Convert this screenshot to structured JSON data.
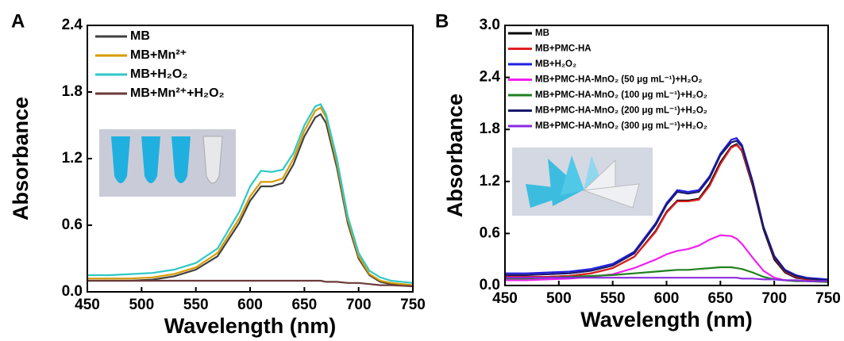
{
  "chart_data": [
    {
      "type": "line",
      "panel_label": "A",
      "x_label": "Wavelength (nm)",
      "y_label": "Absorbance",
      "xlim": [
        450,
        750
      ],
      "xticks": [
        450,
        500,
        550,
        600,
        650,
        700,
        750
      ],
      "ylim": [
        0,
        2.4
      ],
      "yticks": [
        {
          "value": 0,
          "label": "0.0"
        },
        0.6,
        1.2,
        1.8,
        2.4
      ],
      "x": [
        450,
        470,
        490,
        510,
        530,
        550,
        570,
        590,
        600,
        610,
        620,
        630,
        640,
        650,
        660,
        665,
        670,
        680,
        690,
        700,
        710,
        720,
        730,
        750
      ],
      "series": [
        {
          "name": "MB",
          "color": "#404040",
          "values": [
            0.1,
            0.1,
            0.1,
            0.11,
            0.14,
            0.2,
            0.32,
            0.62,
            0.82,
            0.95,
            0.95,
            0.98,
            1.15,
            1.4,
            1.57,
            1.6,
            1.52,
            1.12,
            0.62,
            0.3,
            0.15,
            0.09,
            0.07,
            0.05
          ]
        },
        {
          "name": "MB+Mn²⁺",
          "color": "#d79b00",
          "values": [
            0.12,
            0.12,
            0.12,
            0.13,
            0.16,
            0.22,
            0.35,
            0.66,
            0.86,
            0.99,
            0.99,
            1.02,
            1.2,
            1.45,
            1.63,
            1.66,
            1.57,
            1.16,
            0.65,
            0.32,
            0.16,
            0.1,
            0.08,
            0.06
          ]
        },
        {
          "name": "MB+H₂O₂",
          "color": "#2ec8c8",
          "values": [
            0.15,
            0.15,
            0.16,
            0.17,
            0.2,
            0.26,
            0.39,
            0.72,
            0.95,
            1.09,
            1.08,
            1.1,
            1.25,
            1.5,
            1.67,
            1.69,
            1.6,
            1.2,
            0.68,
            0.35,
            0.19,
            0.13,
            0.1,
            0.08
          ]
        },
        {
          "name": "MB+Mn²⁺+H₂O₂",
          "color": "#6b3a3a",
          "values": [
            0.1,
            0.1,
            0.1,
            0.1,
            0.1,
            0.1,
            0.1,
            0.1,
            0.1,
            0.1,
            0.1,
            0.1,
            0.1,
            0.1,
            0.1,
            0.1,
            0.09,
            0.09,
            0.08,
            0.08,
            0.07,
            0.06,
            0.06,
            0.05
          ]
        }
      ]
    },
    {
      "type": "line",
      "panel_label": "B",
      "x_label": "Wavelength (nm)",
      "y_label": "Absorbance",
      "xlim": [
        450,
        750
      ],
      "xticks": [
        450,
        500,
        550,
        600,
        650,
        700,
        750
      ],
      "ylim": [
        0,
        3
      ],
      "yticks": [
        {
          "value": 0,
          "label": "0.0"
        },
        0.6,
        1.2,
        1.8,
        2.4,
        {
          "value": 3,
          "label": "3.0"
        }
      ],
      "x": [
        450,
        470,
        490,
        510,
        530,
        550,
        570,
        590,
        600,
        610,
        620,
        630,
        640,
        650,
        660,
        665,
        670,
        680,
        690,
        700,
        710,
        720,
        730,
        750
      ],
      "series": [
        {
          "name": "MB",
          "color": "#000000",
          "values": [
            0.1,
            0.1,
            0.1,
            0.11,
            0.14,
            0.2,
            0.33,
            0.63,
            0.85,
            0.98,
            0.98,
            1.0,
            1.17,
            1.42,
            1.6,
            1.63,
            1.55,
            1.15,
            0.65,
            0.3,
            0.15,
            0.09,
            0.07,
            0.05
          ]
        },
        {
          "name": "MB+PMC-HA",
          "color": "#e02020",
          "values": [
            0.1,
            0.1,
            0.1,
            0.11,
            0.14,
            0.2,
            0.33,
            0.62,
            0.84,
            0.97,
            0.97,
            0.99,
            1.15,
            1.4,
            1.59,
            1.62,
            1.56,
            1.17,
            0.67,
            0.32,
            0.16,
            0.1,
            0.07,
            0.05
          ]
        },
        {
          "name": "MB+H₂O₂",
          "color": "#1f1fe0",
          "values": [
            0.14,
            0.14,
            0.15,
            0.16,
            0.19,
            0.25,
            0.39,
            0.72,
            0.95,
            1.1,
            1.08,
            1.1,
            1.26,
            1.52,
            1.68,
            1.7,
            1.62,
            1.2,
            0.68,
            0.34,
            0.18,
            0.12,
            0.09,
            0.07
          ]
        },
        {
          "name": "MB+PMC-HA-MnO₂ (50 μg mL⁻¹)+H₂O₂",
          "color": "#f020f0",
          "values": [
            0.06,
            0.06,
            0.07,
            0.08,
            0.1,
            0.13,
            0.2,
            0.3,
            0.36,
            0.4,
            0.42,
            0.46,
            0.53,
            0.58,
            0.57,
            0.54,
            0.48,
            0.32,
            0.17,
            0.09,
            0.06,
            0.05,
            0.05,
            0.04
          ]
        },
        {
          "name": "MB+PMC-HA-MnO₂ (100 μg mL⁻¹)+H₂O₂",
          "color": "#208020",
          "values": [
            0.08,
            0.08,
            0.09,
            0.1,
            0.11,
            0.12,
            0.14,
            0.16,
            0.17,
            0.18,
            0.18,
            0.19,
            0.2,
            0.21,
            0.21,
            0.2,
            0.19,
            0.15,
            0.1,
            0.07,
            0.06,
            0.05,
            0.05,
            0.04
          ]
        },
        {
          "name": "MB+PMC-HA-MnO₂ (200 μg mL⁻¹)+H₂O₂",
          "color": "#1a1a6e",
          "values": [
            0.12,
            0.12,
            0.13,
            0.14,
            0.17,
            0.23,
            0.37,
            0.7,
            0.93,
            1.08,
            1.06,
            1.08,
            1.24,
            1.5,
            1.65,
            1.67,
            1.6,
            1.19,
            0.67,
            0.33,
            0.17,
            0.11,
            0.08,
            0.06
          ]
        },
        {
          "name": "MB+PMC-HA-MnO₂ (300 μg mL⁻¹)+H₂O₂",
          "color": "#8a2be2",
          "values": [
            0.09,
            0.09,
            0.09,
            0.09,
            0.09,
            0.09,
            0.09,
            0.09,
            0.09,
            0.09,
            0.09,
            0.09,
            0.09,
            0.09,
            0.09,
            0.09,
            0.08,
            0.08,
            0.07,
            0.07,
            0.06,
            0.06,
            0.05,
            0.05
          ]
        }
      ]
    }
  ]
}
